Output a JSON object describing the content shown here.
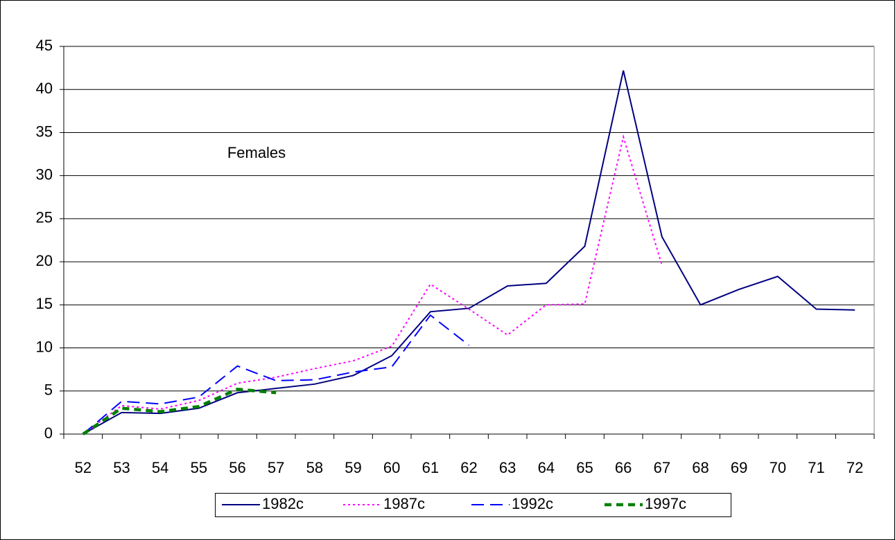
{
  "chart_data": {
    "type": "line",
    "annotation": "Females",
    "categories": [
      "52",
      "53",
      "54",
      "55",
      "56",
      "57",
      "58",
      "59",
      "60",
      "61",
      "62",
      "63",
      "64",
      "65",
      "66",
      "67",
      "68",
      "69",
      "70",
      "71",
      "72"
    ],
    "series": [
      {
        "name": "1982c",
        "color": "#000080",
        "values": [
          0,
          2.5,
          2.4,
          3.0,
          4.8,
          5.3,
          5.8,
          6.8,
          9.1,
          14.2,
          14.6,
          17.2,
          17.5,
          21.8,
          42.2,
          22.9,
          15.0,
          16.8,
          18.3,
          14.5,
          14.4
        ]
      },
      {
        "name": "1987c",
        "color": "#ff00ff",
        "values": [
          0,
          3.3,
          2.9,
          3.9,
          5.9,
          6.6,
          7.6,
          8.5,
          10.2,
          17.4,
          14.5,
          11.5,
          15.0,
          15.1,
          34.5,
          19.6,
          null,
          null,
          null,
          null,
          null
        ]
      },
      {
        "name": "1992c",
        "color": "#0000ff",
        "values": [
          0,
          3.8,
          3.5,
          4.3,
          7.9,
          6.2,
          6.3,
          7.2,
          7.8,
          13.8,
          10.3,
          null,
          null,
          null,
          null,
          null,
          null,
          null,
          null,
          null,
          null
        ]
      },
      {
        "name": "1997c",
        "color": "#008000",
        "values": [
          0,
          3.0,
          2.6,
          3.2,
          5.2,
          4.8,
          null,
          null,
          null,
          null,
          null,
          null,
          null,
          null,
          null,
          null,
          null,
          null,
          null,
          null,
          null
        ]
      }
    ],
    "ylim": [
      0,
      45
    ],
    "yticks": [
      0,
      5,
      10,
      15,
      20,
      25,
      30,
      35,
      40,
      45
    ],
    "grid": true,
    "legend": "bottom"
  }
}
